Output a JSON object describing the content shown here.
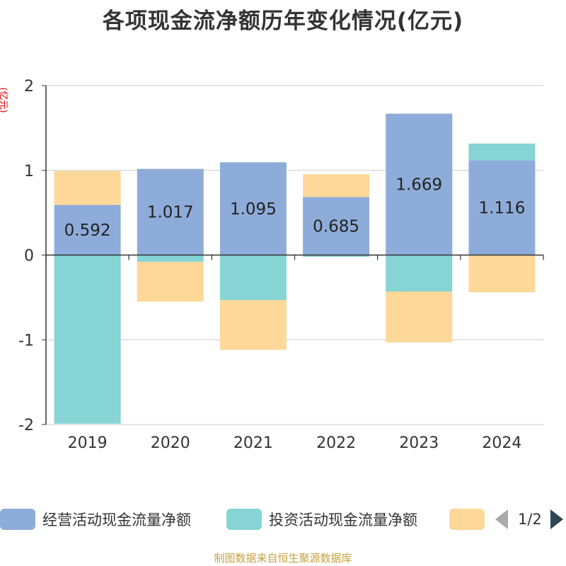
{
  "title": "各项现金流净额历年变化情况(亿元)",
  "y_unit": "(亿元)",
  "source": "制图数据来自恒生聚源数据库",
  "legend_pager": "1/2",
  "colors": {
    "operating": "#8eacd9",
    "investing": "#86d4d4",
    "financing": "#fdd899",
    "grid": "#cccccc",
    "axis": "#333333"
  },
  "chart_data": {
    "type": "bar",
    "stacked": true,
    "categories": [
      "2019",
      "2020",
      "2021",
      "2022",
      "2023",
      "2024"
    ],
    "ylim": [
      -2,
      2
    ],
    "yticks": [
      -2,
      -1,
      0,
      1,
      2
    ],
    "grid": true,
    "legend_position": "bottom",
    "series": [
      {
        "name": "经营活动现金流量净额",
        "values": [
          0.592,
          1.017,
          1.095,
          0.685,
          1.669,
          1.116
        ],
        "labels": [
          "0.592",
          "1.017",
          "1.095",
          "0.685",
          "1.669",
          "1.116"
        ]
      },
      {
        "name": "投资活动现金流量净额",
        "values": [
          -1.99,
          -0.08,
          -0.53,
          -0.02,
          -0.43,
          0.2
        ]
      },
      {
        "name": "",
        "values": [
          0.4,
          -0.47,
          -0.59,
          0.27,
          -0.6,
          -0.44
        ]
      }
    ]
  }
}
